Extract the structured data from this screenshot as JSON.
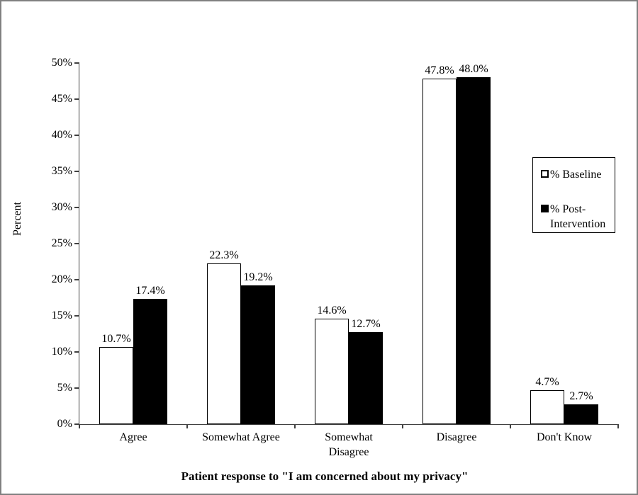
{
  "frame": {
    "border_color": "#808080",
    "background": "#ffffff"
  },
  "chart_data": {
    "type": "bar",
    "title": "",
    "xlabel": "Patient response to \"I am concerned about my privacy\"",
    "ylabel": "Percent",
    "categories": [
      "Agree",
      "Somewhat Agree",
      "Somewhat Disagree",
      "Disagree",
      "Don't Know"
    ],
    "category_lines": [
      [
        "Agree"
      ],
      [
        "Somewhat Agree"
      ],
      [
        "Somewhat",
        "Disagree"
      ],
      [
        "Disagree"
      ],
      [
        "Don't Know"
      ]
    ],
    "series": [
      {
        "name": "% Baseline",
        "color": "#ffffff",
        "values": [
          10.7,
          22.3,
          14.6,
          47.8,
          4.7
        ],
        "labels": [
          "10.7%",
          "22.3%",
          "14.6%",
          "47.8%",
          "4.7%"
        ]
      },
      {
        "name": "% Post-Intervention",
        "color": "#000000",
        "values": [
          17.4,
          19.2,
          12.7,
          48.0,
          2.7
        ],
        "labels": [
          "17.4%",
          "19.2%",
          "12.7%",
          "48.0%",
          "2.7%"
        ]
      }
    ],
    "ylim": [
      0,
      50
    ],
    "ytick_step": 5,
    "ytick_labels": [
      "0%",
      "5%",
      "10%",
      "15%",
      "20%",
      "25%",
      "30%",
      "35%",
      "40%",
      "45%",
      "50%"
    ],
    "grid": false,
    "legend_position": "right-inside",
    "legend": [
      "% Baseline",
      "% Post-Intervention"
    ]
  }
}
